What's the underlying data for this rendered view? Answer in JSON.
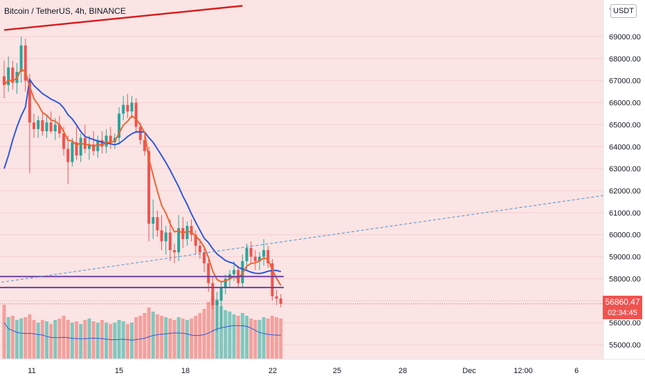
{
  "header": {
    "title": "Bitcoin / TetherUS, 4h, BINANCE",
    "currency_button": "USDT",
    "top_tick_partial": "7"
  },
  "last_price": {
    "value": "56860.47",
    "countdown": "02:34:45",
    "color": "#ef5350"
  },
  "colors": {
    "background": "#fbe4e4",
    "up": "#26a69a",
    "down": "#ef5350",
    "ma_fast": "#f2622d",
    "ma_slow": "#2f58d6",
    "trendline": "#d81e1e",
    "dashed_line": "#4a90c9",
    "zone": "#6b3fa0"
  },
  "chart_data": {
    "type": "candlestick",
    "symbol": "BTCUSDT",
    "interval": "4h",
    "y_axis": {
      "range": [
        54600,
        70400
      ],
      "ticks": [
        "55000.00",
        "56000.00",
        "57000.00",
        "58000.00",
        "59000.00",
        "60000.00",
        "61000.00",
        "62000.00",
        "63000.00",
        "64000.00",
        "65000.00",
        "66000.00",
        "67000.00",
        "68000.00",
        "69000.00"
      ]
    },
    "x_axis": {
      "ticks": [
        {
          "label": "11",
          "x_date": "Nov 11"
        },
        {
          "label": "15",
          "x_date": "Nov 15"
        },
        {
          "label": "18",
          "x_date": "Nov 18"
        },
        {
          "label": "22",
          "x_date": "Nov 22"
        },
        {
          "label": "25",
          "x_date": "Nov 25"
        },
        {
          "label": "28",
          "x_date": "Nov 28"
        },
        {
          "label": "Dec",
          "x_date": "Dec 1"
        },
        {
          "label": "12:00",
          "x_date": "Dec 2 12:00"
        },
        {
          "label": "6",
          "x_date": "Dec 6"
        }
      ]
    },
    "ohlc": [
      [
        67200,
        67900,
        66200,
        66800
      ],
      [
        66800,
        68100,
        66500,
        67600
      ],
      [
        67600,
        67900,
        66600,
        66900
      ],
      [
        66900,
        67800,
        66400,
        67400
      ],
      [
        67400,
        69000,
        66900,
        68600
      ],
      [
        68600,
        68900,
        66500,
        67000
      ],
      [
        67000,
        67300,
        62800,
        65100
      ],
      [
        65100,
        65500,
        64400,
        64800
      ],
      [
        64800,
        65400,
        64400,
        65200
      ],
      [
        65200,
        65600,
        64500,
        64700
      ],
      [
        64700,
        65400,
        64400,
        65100
      ],
      [
        65100,
        65600,
        64600,
        64700
      ],
      [
        64700,
        65300,
        64300,
        65000
      ],
      [
        65000,
        65400,
        64400,
        64600
      ],
      [
        64600,
        64900,
        63600,
        63900
      ],
      [
        63900,
        64500,
        62300,
        63300
      ],
      [
        63300,
        64400,
        63100,
        64200
      ],
      [
        64200,
        64900,
        63400,
        63600
      ],
      [
        63600,
        64600,
        63300,
        64400
      ],
      [
        64400,
        65000,
        63700,
        63900
      ],
      [
        63900,
        64500,
        63400,
        64100
      ],
      [
        64100,
        64700,
        63600,
        63800
      ],
      [
        63800,
        64500,
        63500,
        64300
      ],
      [
        64300,
        64700,
        63700,
        64000
      ],
      [
        64000,
        64800,
        63700,
        64500
      ],
      [
        64500,
        64900,
        63900,
        64200
      ],
      [
        64200,
        64600,
        63900,
        64400
      ],
      [
        64400,
        65800,
        64100,
        65500
      ],
      [
        65500,
        66300,
        65200,
        65900
      ],
      [
        65900,
        66400,
        65300,
        65600
      ],
      [
        65600,
        66300,
        65300,
        66000
      ],
      [
        66000,
        66200,
        64600,
        64900
      ],
      [
        64900,
        65100,
        64100,
        64300
      ],
      [
        64300,
        64500,
        63600,
        63800
      ],
      [
        63800,
        64000,
        59700,
        60500
      ],
      [
        60500,
        61600,
        59800,
        60800
      ],
      [
        60800,
        61100,
        59900,
        60200
      ],
      [
        60200,
        60900,
        59300,
        59700
      ],
      [
        59700,
        60400,
        59100,
        60100
      ],
      [
        60100,
        60700,
        58800,
        59300
      ],
      [
        59300,
        59600,
        58700,
        59200
      ],
      [
        59200,
        60900,
        58800,
        60300
      ],
      [
        60300,
        60800,
        59400,
        59800
      ],
      [
        59800,
        60600,
        59500,
        60400
      ],
      [
        60400,
        60700,
        59700,
        60000
      ],
      [
        60000,
        60200,
        59100,
        59500
      ],
      [
        59500,
        59800,
        58900,
        59200
      ],
      [
        59200,
        59500,
        58300,
        58700
      ],
      [
        58700,
        58900,
        57400,
        57800
      ],
      [
        57800,
        58100,
        56600,
        56800
      ],
      [
        56800,
        57400,
        55600,
        57000
      ],
      [
        57000,
        57900,
        55700,
        57600
      ],
      [
        57600,
        58200,
        57300,
        58000
      ],
      [
        58000,
        58400,
        57600,
        58200
      ],
      [
        58200,
        58800,
        57900,
        58400
      ],
      [
        58400,
        58600,
        57600,
        57800
      ],
      [
        57800,
        59100,
        57600,
        58800
      ],
      [
        58800,
        59600,
        58400,
        59400
      ],
      [
        59400,
        59700,
        58700,
        59000
      ],
      [
        59000,
        59300,
        58400,
        58800
      ],
      [
        58800,
        59200,
        58400,
        59000
      ],
      [
        59000,
        59800,
        58600,
        59300
      ],
      [
        59300,
        59500,
        58500,
        58700
      ],
      [
        58700,
        58900,
        57000,
        57200
      ],
      [
        57200,
        57500,
        56800,
        57100
      ],
      [
        57100,
        57300,
        56700,
        56860
      ]
    ],
    "volume": [
      78,
      60,
      62,
      56,
      58,
      60,
      64,
      56,
      52,
      56,
      54,
      50,
      56,
      58,
      62,
      56,
      52,
      54,
      50,
      56,
      58,
      54,
      52,
      56,
      52,
      50,
      52,
      56,
      54,
      50,
      52,
      60,
      62,
      66,
      74,
      68,
      64,
      62,
      60,
      58,
      56,
      60,
      58,
      56,
      58,
      62,
      66,
      72,
      82,
      90,
      86,
      76,
      70,
      68,
      64,
      62,
      66,
      62,
      58,
      56,
      56,
      60,
      58,
      62,
      60,
      58
    ],
    "ma_fast_color": "#f2622d",
    "ma_slow_color": "#2f58d6",
    "horizontal_levels": [
      58100,
      57600
    ],
    "trendline": {
      "from": [
        0,
        69300
      ],
      "to": [
        56,
        70400
      ]
    },
    "dashed_line": {
      "from": [
        -4,
        57750
      ],
      "to": [
        143,
        61780
      ]
    }
  }
}
